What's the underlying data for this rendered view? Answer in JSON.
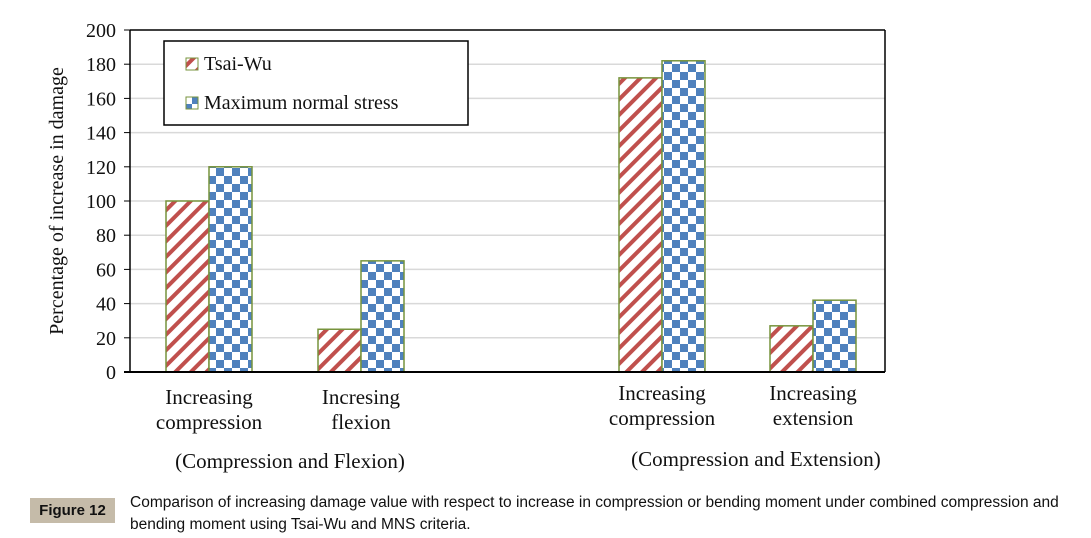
{
  "chart_data": {
    "type": "bar",
    "title": "",
    "xlabel": "",
    "ylabel": "Percentage of increase in damage",
    "ylim": [
      0,
      200
    ],
    "yticks": [
      0,
      20,
      40,
      60,
      80,
      100,
      120,
      140,
      160,
      180,
      200
    ],
    "grid": true,
    "legend_position": "top-left",
    "categories": [
      "Increasing compression",
      "Incresing flexion",
      "Increasing compression",
      "Increasing extension"
    ],
    "category_label_lines": [
      [
        "Increasing",
        "compression"
      ],
      [
        "Incresing",
        "flexion"
      ],
      [
        "Increasing",
        "compression"
      ],
      [
        "Increasing",
        "extension"
      ]
    ],
    "groups": [
      {
        "label": "(Compression and Flexion)",
        "categories": [
          0,
          1
        ]
      },
      {
        "label": "(Compression and Extension)",
        "categories": [
          2,
          3
        ]
      }
    ],
    "series": [
      {
        "name": "Tsai-Wu",
        "pattern": "diagonal-stripes",
        "color": "#c0504d",
        "values": [
          100,
          25,
          172,
          27
        ]
      },
      {
        "name": "Maximum normal stress",
        "pattern": "checkerboard",
        "color": "#4f81bd",
        "values": [
          120,
          65,
          182,
          42
        ]
      }
    ],
    "bar_border_color": "#77933c"
  },
  "caption": {
    "figure_label": "Figure 12",
    "text": "Comparison of increasing damage value with respect to increase in compression or bending moment under combined compression and bending moment using Tsai-Wu and MNS criteria."
  }
}
